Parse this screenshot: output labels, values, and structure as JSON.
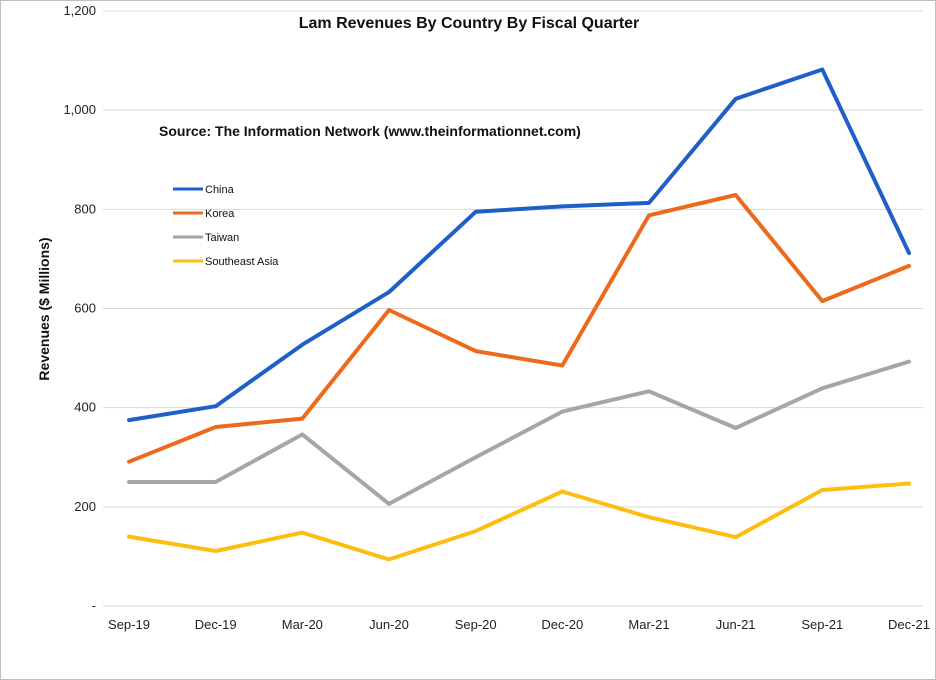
{
  "chart_data": {
    "type": "line",
    "title": "Lam Revenues By Country By Fiscal Quarter",
    "subtitle": "Source: The Information Network (www.theinformationnet.com)",
    "xlabel": "",
    "ylabel": "Revenues ($ Millions)",
    "ylim": [
      0,
      1200
    ],
    "yticks": [
      0,
      200,
      400,
      600,
      800,
      1000,
      1200
    ],
    "ytick_labels": [
      "-",
      "200",
      "400",
      "600",
      "800",
      "1,000",
      "1,200"
    ],
    "grid": true,
    "legend_position": "upper-left",
    "categories": [
      "Sep-19",
      "Dec-19",
      "Mar-20",
      "Jun-20",
      "Sep-20",
      "Dec-20",
      "Mar-21",
      "Jun-21",
      "Sep-21",
      "Dec-21"
    ],
    "series": [
      {
        "name": "China",
        "color": "#1f5fc8",
        "values": [
          375,
          403,
          527,
          633,
          795,
          806,
          813,
          1023,
          1082,
          712
        ]
      },
      {
        "name": "Korea",
        "color": "#ed6a1c",
        "values": [
          291,
          361,
          378,
          597,
          514,
          485,
          788,
          829,
          615,
          686
        ]
      },
      {
        "name": "Taiwan",
        "color": "#a6a6a6",
        "values": [
          250,
          250,
          346,
          206,
          300,
          392,
          433,
          359,
          439,
          493
        ]
      },
      {
        "name": "Southeast Asia",
        "color": "#fdbf0f",
        "values": [
          140,
          111,
          148,
          94,
          151,
          231,
          179,
          139,
          234,
          247
        ]
      }
    ]
  }
}
